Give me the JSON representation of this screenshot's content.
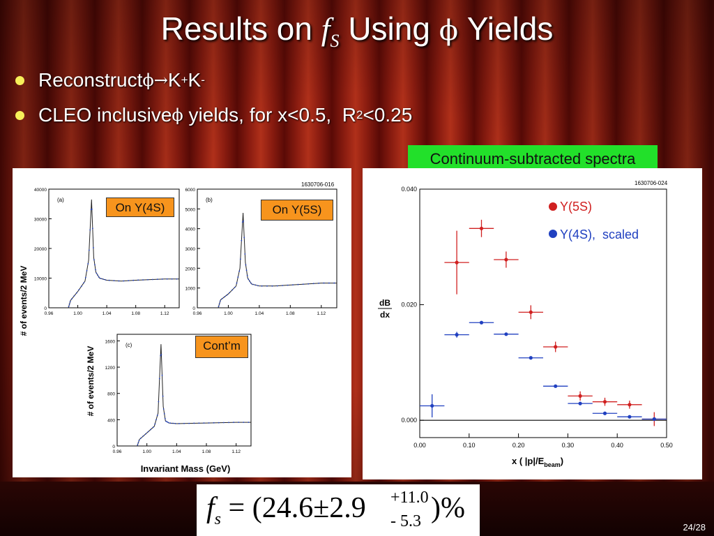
{
  "slide": {
    "title_prefix": "Results on ",
    "title_f": "f",
    "title_f_sub": "S",
    "title_middle": " Using ",
    "title_phi": "ϕ",
    "title_suffix": " Yields",
    "bullets": [
      {
        "text_a": "Reconstruct ",
        "phi": "ϕ",
        "arrow": "→",
        "k1": "K",
        "k1_sup": "+",
        "k2": "K",
        "k2_sup": "-"
      },
      {
        "text_a": "CLEO inclusive ",
        "phi": "ϕ",
        "text_b": " yields, for x<0.5,  R",
        "sub": "2",
        "text_c": "<0.25"
      }
    ],
    "continuum_label": "Continuum-subtracted spectra",
    "formula": {
      "f": "f",
      "f_sub": "s",
      "eq": " = (24.6±2.9",
      "sup": "+11.0",
      "inf": "- 5.3",
      "end": ")%"
    },
    "page": "24/28",
    "colors": {
      "red": "#d02020",
      "blue": "#2040c0",
      "green": "#22e02a",
      "orange": "#f7941d"
    }
  },
  "left_figure": {
    "tag": "1630706-016",
    "ylabel": "# of events/2 MeV",
    "xlabel": "Invariant Mass (GeV)",
    "panels": [
      {
        "letter": "(a)",
        "label": "On Υ(4S)",
        "yticks": [
          "0",
          "10000",
          "20000",
          "30000",
          "40000"
        ],
        "xticks": [
          "0.96",
          "1.00",
          "1.04",
          "1.08",
          "1.12"
        ]
      },
      {
        "letter": "(b)",
        "label": "On Υ(5S)",
        "yticks": [
          "0",
          "1000",
          "2000",
          "3000",
          "4000",
          "5000",
          "6000"
        ],
        "xticks": [
          "0.96",
          "1.00",
          "1.04",
          "1.08",
          "1.12"
        ]
      },
      {
        "letter": "(c)",
        "label": "Cont’m",
        "yticks": [
          "0",
          "400",
          "800",
          "1200",
          "1600"
        ],
        "xticks": [
          "0.96",
          "1.00",
          "1.04",
          "1.08",
          "1.12"
        ]
      }
    ]
  },
  "chart_data": [
    {
      "type": "line",
      "title": "(a) On Υ(4S)",
      "xlabel": "Invariant Mass (GeV)",
      "ylabel": "# of events/2 MeV",
      "xlim": [
        0.96,
        1.14
      ],
      "ylim": [
        0,
        40000
      ],
      "x": [
        0.987,
        0.99,
        1.0,
        1.01,
        1.015,
        1.019,
        1.022,
        1.025,
        1.03,
        1.04,
        1.06,
        1.08,
        1.1,
        1.12,
        1.14
      ],
      "y": [
        0,
        2500,
        5500,
        9000,
        16000,
        36500,
        17000,
        12000,
        10000,
        9300,
        9000,
        9300,
        9500,
        9700,
        9700
      ]
    },
    {
      "type": "line",
      "title": "(b) On Υ(5S)",
      "xlabel": "",
      "ylabel": "",
      "xlim": [
        0.96,
        1.14
      ],
      "ylim": [
        0,
        6000
      ],
      "x": [
        0.987,
        0.99,
        1.0,
        1.01,
        1.015,
        1.019,
        1.022,
        1.025,
        1.03,
        1.04,
        1.06,
        1.08,
        1.1,
        1.12,
        1.14
      ],
      "y": [
        0,
        400,
        700,
        1100,
        2000,
        4800,
        2300,
        1500,
        1200,
        1100,
        1100,
        1150,
        1200,
        1250,
        1250
      ]
    },
    {
      "type": "line",
      "title": "(c) Cont’m",
      "xlabel": "Invariant Mass (GeV)",
      "ylabel": "# of events/2 MeV",
      "xlim": [
        0.96,
        1.14
      ],
      "ylim": [
        0,
        1700
      ],
      "x": [
        0.987,
        0.99,
        1.0,
        1.01,
        1.015,
        1.019,
        1.022,
        1.025,
        1.03,
        1.04,
        1.06,
        1.08,
        1.1,
        1.12,
        1.14
      ],
      "y": [
        0,
        100,
        200,
        300,
        500,
        1550,
        600,
        380,
        350,
        340,
        345,
        350,
        355,
        360,
        360
      ]
    },
    {
      "type": "scatter",
      "tag": "1630706-024",
      "ylabel": "dB/dx",
      "ylabel_num": "dB",
      "ylabel_den": "dx",
      "xlabel_pre": "x ( |p|/E",
      "xlabel_sub": "beam",
      "xlabel_post": ")",
      "xlim": [
        0.0,
        0.5
      ],
      "ylim": [
        -0.003,
        0.04
      ],
      "xticks": [
        "0.00",
        "0.10",
        "0.20",
        "0.30",
        "0.40",
        "0.50"
      ],
      "yticks": [
        {
          "v": 0.0,
          "label": "0.000"
        },
        {
          "v": 0.02,
          "label": "0.020"
        },
        {
          "v": 0.04,
          "label": "0.040"
        }
      ],
      "series": [
        {
          "name": "Υ(5S)",
          "color": "#d02020",
          "points": [
            {
              "x": 0.075,
              "y": 0.0273,
              "yerr": 0.0055
            },
            {
              "x": 0.125,
              "y": 0.0332,
              "yerr": 0.0015
            },
            {
              "x": 0.175,
              "y": 0.0278,
              "yerr": 0.0014
            },
            {
              "x": 0.225,
              "y": 0.0187,
              "yerr": 0.0012
            },
            {
              "x": 0.275,
              "y": 0.0127,
              "yerr": 0.0009
            },
            {
              "x": 0.325,
              "y": 0.0042,
              "yerr": 0.0008
            },
            {
              "x": 0.375,
              "y": 0.0032,
              "yerr": 0.0007
            },
            {
              "x": 0.425,
              "y": 0.0027,
              "yerr": 0.0007
            },
            {
              "x": 0.475,
              "y": 0.0002,
              "yerr": 0.0012
            }
          ]
        },
        {
          "name": "Υ(4S),  scaled",
          "color": "#2040c0",
          "points": [
            {
              "x": 0.025,
              "y": 0.0025,
              "yerr": 0.002
            },
            {
              "x": 0.075,
              "y": 0.0148,
              "yerr": 0.0005
            },
            {
              "x": 0.125,
              "y": 0.0169,
              "yerr": 0.0002
            },
            {
              "x": 0.175,
              "y": 0.0149,
              "yerr": 0.0002
            },
            {
              "x": 0.225,
              "y": 0.0108,
              "yerr": 0.0002
            },
            {
              "x": 0.275,
              "y": 0.0059,
              "yerr": 0.0002
            },
            {
              "x": 0.325,
              "y": 0.0029,
              "yerr": 0.0002
            },
            {
              "x": 0.375,
              "y": 0.0012,
              "yerr": 0.0002
            },
            {
              "x": 0.425,
              "y": 0.0006,
              "yerr": 0.0002
            },
            {
              "x": 0.475,
              "y": 0.0002,
              "yerr": 0.0002
            }
          ]
        }
      ],
      "grid": false,
      "legend_position": "top-right"
    }
  ]
}
